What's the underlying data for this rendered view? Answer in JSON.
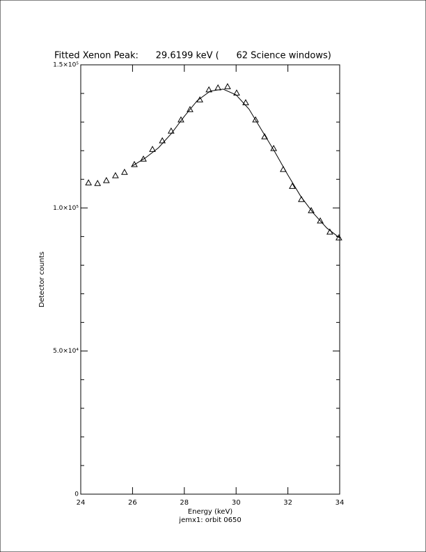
{
  "chart_data": {
    "type": "scatter",
    "title": "Fitted Xenon Peak:      29.6199 keV (      62 Science windows)",
    "xlabel": "Energy (keV)",
    "ylabel": "Detector counts",
    "subtitle": "jemx1: orbit 0650",
    "series": [
      {
        "marker": "triangle",
        "color": "#000000",
        "x": [
          24.3,
          24.65,
          24.99,
          25.34,
          25.69,
          26.07,
          26.42,
          26.77,
          27.15,
          27.49,
          27.87,
          28.22,
          28.6,
          28.95,
          29.3,
          29.67,
          30.02,
          30.37,
          30.75,
          31.1,
          31.45,
          31.82,
          32.17,
          32.52,
          32.9,
          33.25,
          33.62,
          33.97
        ],
        "values": [
          108800,
          108600,
          109600,
          111300,
          112500,
          115200,
          117100,
          120500,
          123500,
          126900,
          130800,
          134400,
          137800,
          141300,
          142000,
          142400,
          140200,
          136800,
          130800,
          124900,
          120800,
          113500,
          107600,
          103000,
          99100,
          95500,
          91600,
          89600
        ]
      }
    ],
    "fit": {
      "color": "#000000",
      "x": [
        26.0,
        26.5,
        27.0,
        27.5,
        28.0,
        28.5,
        29.0,
        29.5,
        30.0,
        30.5,
        31.0,
        31.5,
        32.0,
        32.5,
        33.0,
        33.5,
        34.0
      ],
      "values": [
        114700,
        117500,
        121000,
        126000,
        132000,
        137500,
        140800,
        141500,
        139500,
        134500,
        127000,
        119500,
        111500,
        104000,
        98000,
        93000,
        89500
      ]
    },
    "xlim": [
      24,
      34
    ],
    "xticks": [
      24,
      26,
      28,
      30,
      32,
      34
    ],
    "ylim": [
      0,
      150000
    ],
    "yticks": [
      0,
      {
        "value": 50000,
        "label": "5.0×10⁴"
      },
      {
        "value": 100000,
        "label": "1.0×10⁵"
      },
      {
        "value": 150000,
        "label": "1.5×10⁵"
      }
    ],
    "yminor_ticks": [
      10000,
      20000,
      30000,
      40000,
      60000,
      70000,
      80000,
      90000,
      110000,
      120000,
      130000,
      140000
    ]
  }
}
